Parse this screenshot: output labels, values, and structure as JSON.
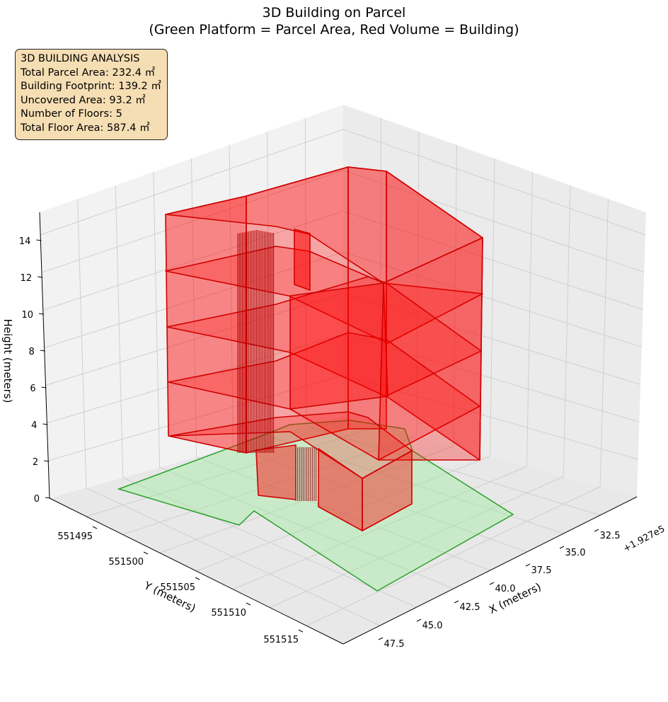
{
  "chart_data": {
    "type": "3d-polygons",
    "title": "3D Building on Parcel",
    "subtitle": "(Green Platform = Parcel Area, Red Volume = Building)",
    "xlabel": "X (meters)",
    "ylabel": "Y (meters)",
    "zlabel": "Height (meters)",
    "x_offset_label": "+1.927e5",
    "x_ticks": [
      "32.5",
      "35.0",
      "37.5",
      "40.0",
      "42.5",
      "45.0",
      "47.5"
    ],
    "y_ticks": [
      "551495",
      "551500",
      "551505",
      "551510",
      "551515"
    ],
    "z_ticks": [
      "0",
      "2",
      "4",
      "6",
      "8",
      "10",
      "12",
      "14"
    ],
    "grid": true,
    "info_box": {
      "heading": "3D BUILDING ANALYSIS",
      "lines": [
        "Total Parcel Area: 232.4 ㎡",
        "Building Footprint: 139.2 ㎡",
        "Uncovered Area: 93.2 ㎡",
        "Number of Floors: 5",
        "Total Floor Area: 587.4 ㎡"
      ]
    },
    "parcel": {
      "area_m2": 232.4,
      "color": "#2ca02c",
      "fill": "#90ee90"
    },
    "building": {
      "floors": 5,
      "height_m": 15,
      "footprint_m2": 139.2,
      "color": "#d00000",
      "fill": "#ff0000"
    }
  }
}
